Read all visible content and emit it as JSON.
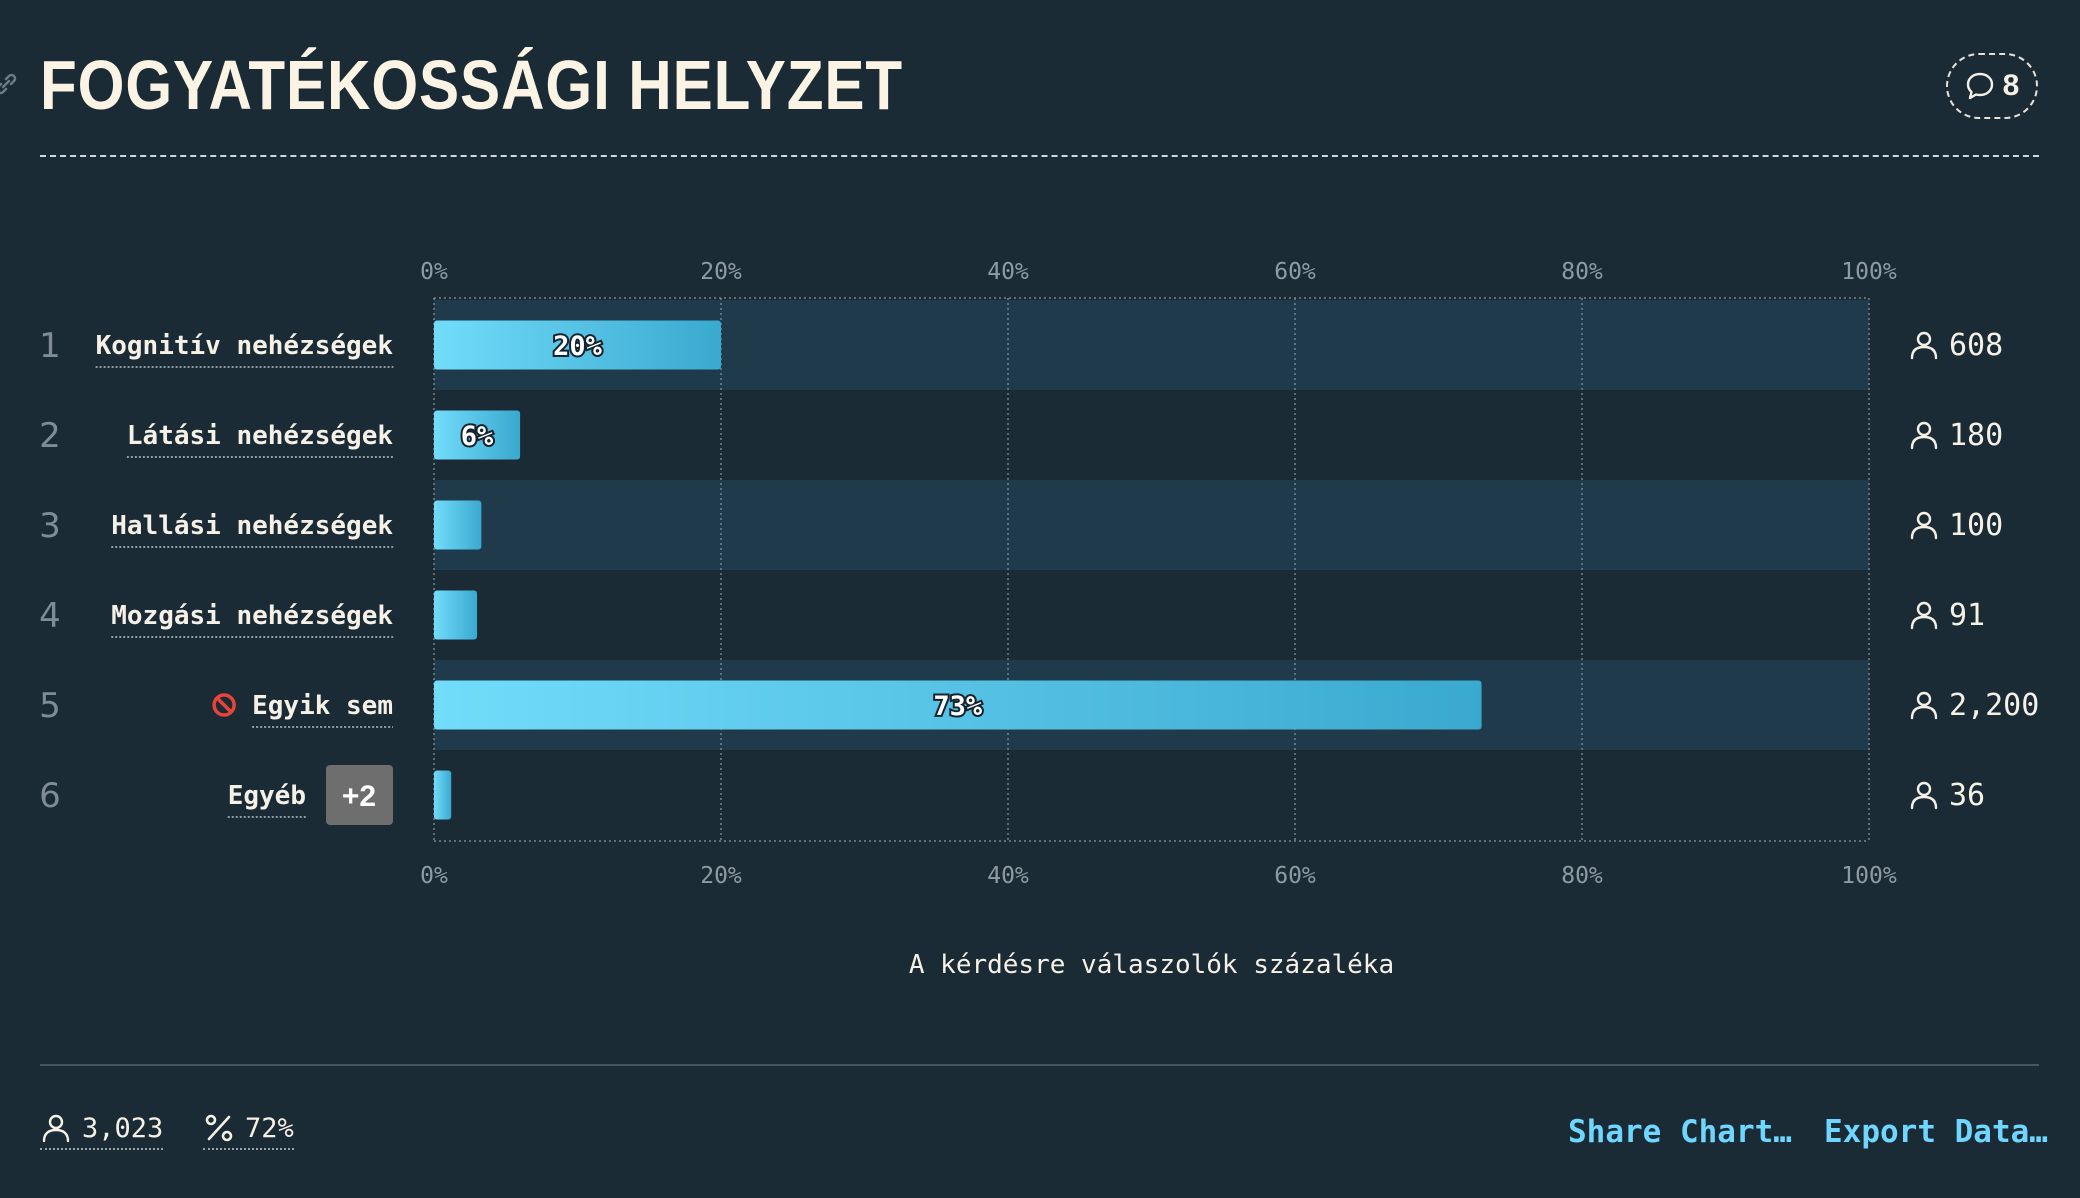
{
  "header": {
    "title": "FOGYATÉKOSSÁGI HELYZET",
    "comment_count": "8"
  },
  "chart_data": {
    "type": "bar",
    "orientation": "horizontal",
    "categories": [
      "Kognitív nehézségek",
      "Látási nehézségek",
      "Hallási nehézségek",
      "Mozgási nehézségek",
      "Egyik sem",
      "Egyéb"
    ],
    "ranks": [
      "1",
      "2",
      "3",
      "4",
      "5",
      "6"
    ],
    "values": [
      20,
      6,
      3.3,
      3,
      73,
      1.2
    ],
    "value_labels": [
      "20%",
      "6%",
      "",
      "",
      "73%",
      ""
    ],
    "counts": [
      "608",
      "180",
      "100",
      "91",
      "2,200",
      "36"
    ],
    "xlim": [
      0,
      100
    ],
    "xticks": [
      "0%",
      "20%",
      "40%",
      "60%",
      "80%",
      "100%"
    ],
    "xlabel": "A kérdésre válaszolók százaléka",
    "extra_badge": "+2",
    "grid": true,
    "colors": {
      "bar_start": "#72dcfb",
      "bar_end": "#3aa9cf",
      "band": "#1f3a4a",
      "background": "#1b2b35"
    }
  },
  "footer": {
    "respondents": "3,023",
    "percent": "72%",
    "share_label": "Share Chart…",
    "export_label": "Export Data…"
  },
  "icons": [
    "link-icon",
    "comment-icon",
    "user-icon",
    "percent-icon",
    "prohibited-icon"
  ]
}
